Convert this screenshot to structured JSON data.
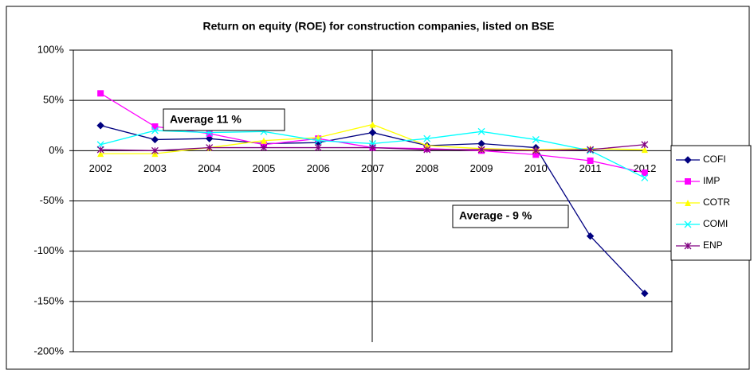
{
  "chart_data": {
    "type": "line",
    "title": "Return on equity (ROE) for construction companies, listed on BSE",
    "categories": [
      "2002",
      "2003",
      "2004",
      "2005",
      "2006",
      "2007",
      "2008",
      "2009",
      "2010",
      "2011",
      "2012"
    ],
    "series": [
      {
        "name": "COFI",
        "color": "#000080",
        "marker": "diamond",
        "values": [
          25,
          11,
          12,
          7,
          8,
          18,
          5,
          7,
          3,
          -85,
          -142
        ]
      },
      {
        "name": "IMP",
        "color": "#ff00ff",
        "marker": "square",
        "values": [
          57,
          24,
          17,
          6,
          12,
          3,
          2,
          0,
          -4,
          -10,
          -22
        ]
      },
      {
        "name": "COTR",
        "color": "#ffff00",
        "marker": "triangle",
        "values": [
          -3,
          -3,
          3,
          10,
          13,
          26,
          5,
          2,
          1,
          2,
          1
        ]
      },
      {
        "name": "COMI",
        "color": "#00ffff",
        "marker": "x",
        "values": [
          6,
          20,
          18,
          19,
          10,
          7,
          12,
          19,
          11,
          0,
          -27
        ]
      },
      {
        "name": "ENP",
        "color": "#800080",
        "marker": "star",
        "values": [
          1,
          0,
          3,
          3,
          3,
          3,
          1,
          1,
          0,
          1,
          6
        ]
      }
    ],
    "ylim": [
      -200,
      100
    ],
    "yticks": [
      {
        "value": -200,
        "label": "-200%"
      },
      {
        "value": -150,
        "label": "-150%"
      },
      {
        "value": -100,
        "label": "-100%"
      },
      {
        "value": -50,
        "label": "-50%"
      },
      {
        "value": 0,
        "label": "0%"
      },
      {
        "value": 50,
        "label": "50%"
      },
      {
        "value": 100,
        "label": "100%"
      }
    ],
    "grid": true,
    "legend": "right",
    "annotations": [
      "Average 11 %",
      "Average - 9  %"
    ]
  }
}
